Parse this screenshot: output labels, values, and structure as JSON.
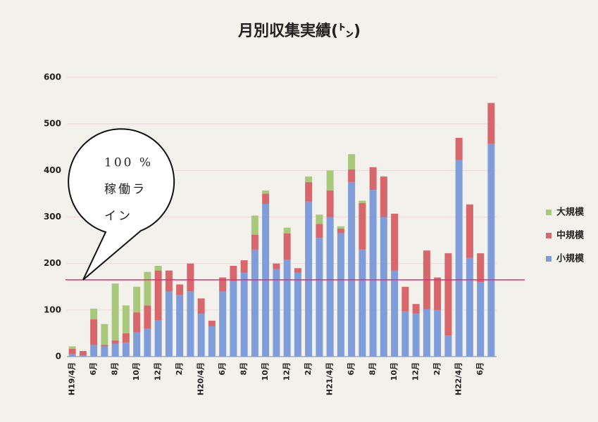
{
  "chart_data": {
    "type": "stacked_bar",
    "title": "月別収集実績(㌧)",
    "categories": [
      "H19/4月",
      null,
      "6月",
      null,
      "8月",
      null,
      "10月",
      null,
      "12月",
      null,
      "2月",
      null,
      "H20/4月",
      null,
      "6月",
      null,
      "8月",
      null,
      "10月",
      null,
      "12月",
      null,
      "2月",
      null,
      "H21/4月",
      null,
      "6月",
      null,
      "8月",
      null,
      "10月",
      null,
      "12月",
      null,
      "2月",
      null,
      "H22/4月",
      null,
      "6月",
      null
    ],
    "series": [
      {
        "name": "小規模",
        "color": "#7f9dd8",
        "values": [
          5,
          3,
          25,
          22,
          28,
          30,
          52,
          60,
          78,
          140,
          133,
          140,
          92,
          65,
          140,
          162,
          180,
          230,
          328,
          188,
          208,
          180,
          333,
          255,
          300,
          265,
          375,
          230,
          358,
          300,
          185,
          97,
          92,
          102,
          100,
          45,
          422,
          212,
          160,
          457
        ]
      },
      {
        "name": "中規模",
        "color": "#d8676c",
        "values": [
          12,
          9,
          55,
          3,
          7,
          20,
          43,
          50,
          107,
          45,
          22,
          60,
          33,
          12,
          30,
          33,
          27,
          32,
          22,
          12,
          57,
          10,
          42,
          30,
          57,
          10,
          27,
          100,
          49,
          87,
          122,
          53,
          21,
          126,
          70,
          177,
          48,
          115,
          62,
          88
        ]
      },
      {
        "name": "大規模",
        "color": "#a8c87a",
        "values": [
          5,
          0,
          23,
          45,
          122,
          60,
          55,
          72,
          10,
          0,
          0,
          0,
          0,
          0,
          0,
          0,
          0,
          41,
          7,
          0,
          12,
          0,
          12,
          20,
          43,
          5,
          33,
          5,
          0,
          0,
          0,
          0,
          0,
          0,
          0,
          0,
          0,
          0,
          0,
          0
        ]
      }
    ],
    "ylim": [
      0,
      600
    ],
    "yticks": [
      0,
      100,
      200,
      300,
      400,
      500,
      600
    ],
    "grid": true,
    "reference_line": {
      "value": 165,
      "color": "#e0307a",
      "label": [
        "100 %",
        "稼働ラ",
        "イン"
      ]
    },
    "legend": "right"
  }
}
